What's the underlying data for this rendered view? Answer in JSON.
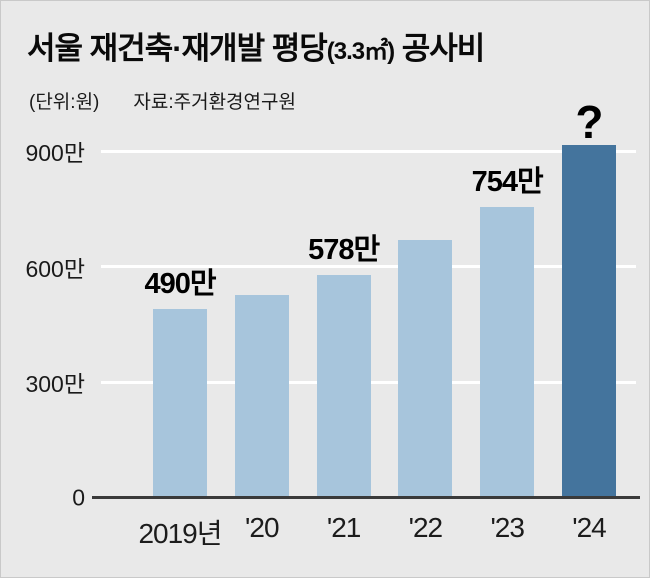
{
  "header": {
    "title_part1": "서울 재건축·재개발 평당",
    "title_paren": "(3.3㎡)",
    "title_part2": " 공사비",
    "unit": "(단위:원)",
    "source": "자료:주거환경연구원"
  },
  "chart_data": {
    "type": "bar",
    "title": "서울 재건축·재개발 평당(3.3㎡) 공사비",
    "unit_label": "(단위:원)",
    "source_label": "자료:주거환경연구원",
    "categories": [
      "2019년",
      "'20",
      "'21",
      "'22",
      "'23",
      "'24"
    ],
    "values": [
      490,
      527,
      578,
      668,
      754,
      915
    ],
    "bar_labels": [
      "490만",
      "",
      "578만",
      "",
      "754만",
      "?"
    ],
    "highlight_index": 5,
    "ylim": [
      0,
      900
    ],
    "yticks": [
      0,
      300,
      600,
      900
    ],
    "ytick_labels": [
      "0",
      "300만",
      "600만",
      "900만"
    ],
    "grid": true,
    "legend": false,
    "colors": {
      "bar": "#a7c5dc",
      "bar_highlight": "#44749d",
      "background": "#e9e9e9",
      "gridline": "#ffffff",
      "baseline": "#3a3a3a",
      "text": "#0a0a0a"
    }
  }
}
